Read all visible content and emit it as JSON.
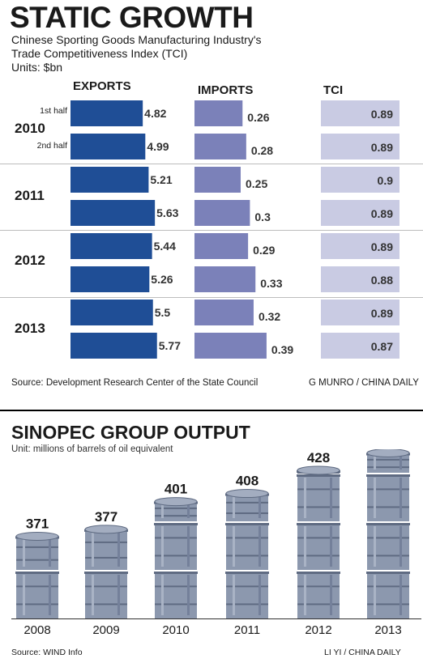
{
  "top": {
    "title": "STATIC GROWTH",
    "subtitle_line1": "Chinese Sporting Goods Manufacturing Industry's",
    "subtitle_line2": "Trade Competitiveness Index (TCI)",
    "units": "Units: $bn",
    "col_exports": "EXPORTS",
    "col_imports": "IMPORTS",
    "col_tci": "TCI",
    "half1": "1st half",
    "half2": "2nd half",
    "source": "Source: Development Research Center of the State Council",
    "credit": "G MUNRO / CHINA DAILY"
  },
  "bottom": {
    "title": "SINOPEC GROUP OUTPUT",
    "unit": "Unit: millions of barrels of oil equivalent",
    "source": "Source: WIND Info",
    "credit": "LI YI / CHINA DAILY"
  },
  "colors": {
    "exports": "#1f4e96",
    "imports": "#7b81b9",
    "tci": "#c9cbe3",
    "barrel": "#8c98ae",
    "barrel_dark": "#5f6b82"
  },
  "chart_data": [
    {
      "type": "bar",
      "title": "STATIC GROWTH",
      "years": [
        "2010",
        "2011",
        "2012",
        "2013"
      ],
      "periods": [
        "1st half",
        "2nd half"
      ],
      "rows": [
        {
          "year": "2010",
          "period": "1st half",
          "exports": "4.82",
          "imports": "0.26",
          "tci": "0.89"
        },
        {
          "year": "2010",
          "period": "2nd half",
          "exports": "4.99",
          "imports": "0.28",
          "tci": "0.89"
        },
        {
          "year": "2011",
          "period": "1st half",
          "exports": "5.21",
          "imports": "0.25",
          "tci": "0.9"
        },
        {
          "year": "2011",
          "period": "2nd half",
          "exports": "5.63",
          "imports": "0.3",
          "tci": "0.89"
        },
        {
          "year": "2012",
          "period": "1st half",
          "exports": "5.44",
          "imports": "0.29",
          "tci": "0.89"
        },
        {
          "year": "2012",
          "period": "2nd half",
          "exports": "5.26",
          "imports": "0.33",
          "tci": "0.88"
        },
        {
          "year": "2013",
          "period": "1st half",
          "exports": "5.5",
          "imports": "0.32",
          "tci": "0.89"
        },
        {
          "year": "2013",
          "period": "2nd half",
          "exports": "5.77",
          "imports": "0.39",
          "tci": "0.87"
        }
      ]
    },
    {
      "type": "bar",
      "title": "SINOPEC GROUP OUTPUT",
      "categories": [
        "2008",
        "2009",
        "2010",
        "2011",
        "2012",
        "2013"
      ],
      "values": [
        371,
        377,
        401,
        408,
        428,
        443
      ]
    }
  ]
}
